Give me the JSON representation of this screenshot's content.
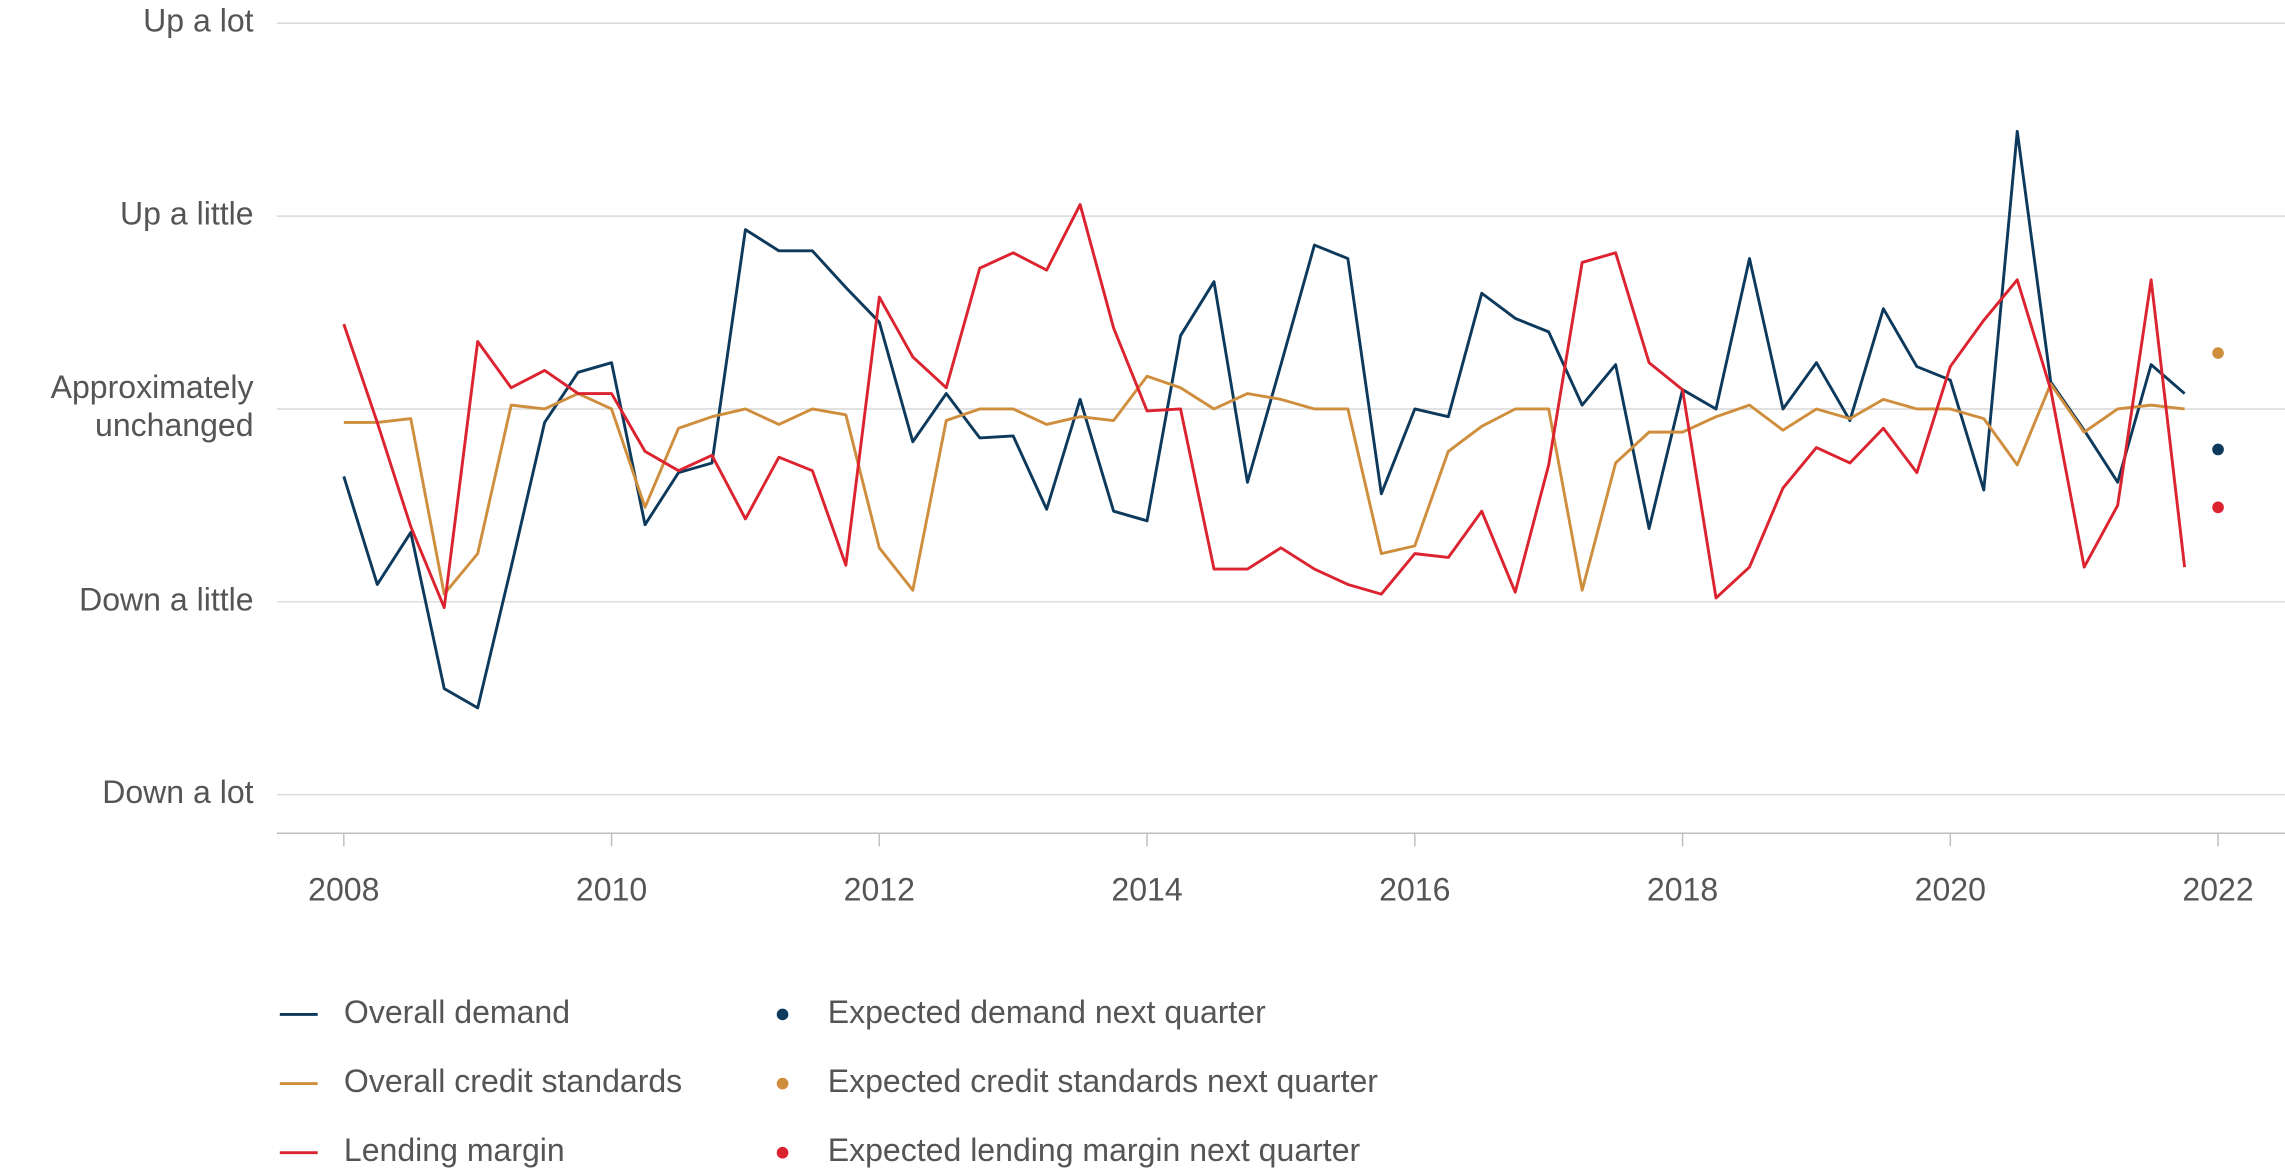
{
  "chart_data": {
    "type": "line",
    "x": [
      2008,
      2008.25,
      2008.5,
      2008.75,
      2009,
      2009.25,
      2009.5,
      2009.75,
      2010,
      2010.25,
      2010.5,
      2010.75,
      2011,
      2011.25,
      2011.5,
      2011.75,
      2012,
      2012.25,
      2012.5,
      2012.75,
      2013,
      2013.25,
      2013.5,
      2013.75,
      2014,
      2014.25,
      2014.5,
      2014.75,
      2015,
      2015.25,
      2015.5,
      2015.75,
      2016,
      2016.25,
      2016.5,
      2016.75,
      2017,
      2017.25,
      2017.5,
      2017.75,
      2018,
      2018.25,
      2018.5,
      2018.75,
      2019,
      2019.25,
      2019.5,
      2019.75,
      2020,
      2020.25,
      2020.5,
      2020.75,
      2021,
      2021.25,
      2021.5,
      2021.75
    ],
    "series": [
      {
        "name": "Overall demand",
        "color": "#0d3a5c",
        "values": [
          -0.35,
          -0.91,
          -0.64,
          -1.45,
          -1.55,
          -0.82,
          -0.07,
          0.19,
          0.24,
          -0.6,
          -0.33,
          -0.28,
          0.93,
          0.82,
          0.82,
          0.63,
          0.45,
          -0.17,
          0.08,
          -0.15,
          -0.14,
          -0.52,
          0.05,
          -0.53,
          -0.58,
          0.38,
          0.66,
          -0.38,
          0.23,
          0.85,
          0.78,
          -0.44,
          0,
          -0.04,
          0.6,
          0.47,
          0.4,
          0.02,
          0.23,
          -0.62,
          0.1,
          0,
          0.78,
          0,
          0.24,
          -0.06,
          0.52,
          0.22,
          0.15,
          -0.42,
          1.44,
          0.14,
          -0.11,
          -0.38,
          0.23,
          0.08
        ]
      },
      {
        "name": "Overall credit standards",
        "color": "#cf8e3e",
        "values": [
          -0.07,
          -0.07,
          -0.05,
          -0.96,
          -0.75,
          0.02,
          0,
          0.08,
          0,
          -0.51,
          -0.1,
          -0.04,
          0,
          -0.08,
          0,
          -0.03,
          -0.72,
          -0.94,
          -0.06,
          0,
          0,
          -0.08,
          -0.04,
          -0.06,
          0.17,
          0.11,
          0,
          0.08,
          0.05,
          0,
          0,
          -0.75,
          -0.71,
          -0.22,
          -0.09,
          0,
          0,
          -0.94,
          -0.28,
          -0.12,
          -0.12,
          -0.04,
          0.02,
          -0.11,
          0,
          -0.05,
          0.05,
          0,
          0,
          -0.05,
          -0.29,
          0.13,
          -0.12,
          0,
          0.02,
          0
        ]
      },
      {
        "name": "Lending margin",
        "color": "#dc2330",
        "values": [
          0.44,
          -0.07,
          -0.61,
          -1.03,
          0.35,
          0.11,
          0.2,
          0.08,
          0.08,
          -0.22,
          -0.32,
          -0.24,
          -0.57,
          -0.25,
          -0.32,
          -0.81,
          0.58,
          0.27,
          0.11,
          0.73,
          0.81,
          0.72,
          1.06,
          0.42,
          -0.01,
          0,
          -0.83,
          -0.83,
          -0.72,
          -0.83,
          -0.91,
          -0.96,
          -0.75,
          -0.77,
          -0.53,
          -0.95,
          -0.29,
          0.76,
          0.81,
          0.24,
          0.1,
          -0.98,
          -0.82,
          -0.41,
          -0.2,
          -0.28,
          -0.1,
          -0.33,
          0.22,
          0.46,
          0.67,
          0.1,
          -0.82,
          -0.5,
          0.67,
          -0.82
        ]
      },
      {
        "name": "Expected demand next quarter",
        "color": "#0d3a5c",
        "marker": "dot",
        "x": [
          2022
        ],
        "values": [
          -0.21
        ]
      },
      {
        "name": "Expected credit standards next quarter",
        "color": "#cf8e3e",
        "marker": "dot",
        "x": [
          2022
        ],
        "values": [
          0.29
        ]
      },
      {
        "name": "Expected lending margin next quarter",
        "color": "#dc2330",
        "marker": "dot",
        "x": [
          2022
        ],
        "values": [
          -0.51
        ]
      }
    ],
    "xlim": [
      2007.5,
      2022.5
    ],
    "xticks": [
      2008,
      2010,
      2012,
      2014,
      2016,
      2018,
      2020,
      2022
    ],
    "ylim": [
      -2.2,
      2
    ],
    "yticks": [
      {
        "value": -2,
        "label": "Down a lot"
      },
      {
        "value": -1,
        "label": "Down a little"
      },
      {
        "value": 0,
        "label": "Approximately\nunchanged"
      },
      {
        "value": 1,
        "label": "Up a little"
      },
      {
        "value": 2,
        "label": "Up a lot"
      }
    ],
    "grid": true,
    "legend": "bottom"
  }
}
